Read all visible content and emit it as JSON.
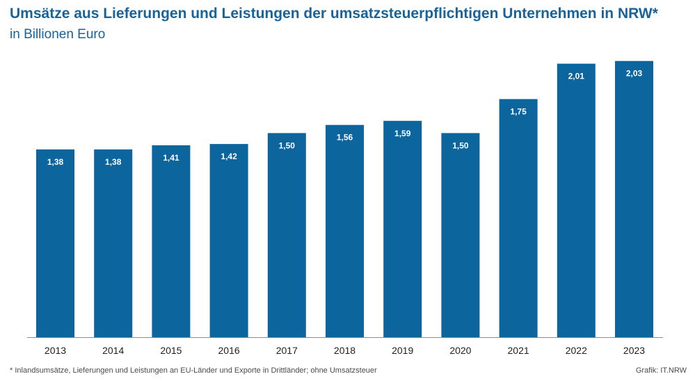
{
  "chart": {
    "title": "Umsätze aus Lieferungen und Leistungen der umsatzsteuerpflichtigen Unternehmen in NRW*",
    "subtitle": "in Billionen Euro",
    "footnote": "* Inlandsumsätze, Lieferungen und Leistungen an EU-Länder und Exporte in Drittländer; ohne Umsatzsteuer",
    "source": "Grafik: IT.NRW"
  },
  "colors": {
    "bar": "#0d659e",
    "title": "#17639a",
    "axis": "#8c8c8c",
    "bar_label": "#ffffff"
  },
  "chart_data": {
    "type": "bar",
    "title": "Umsätze aus Lieferungen und Leistungen der umsatzsteuerpflichtigen Unternehmen in NRW*",
    "subtitle": "in Billionen Euro",
    "xlabel": "",
    "ylabel": "",
    "ylim": [
      0,
      2.1
    ],
    "grid": false,
    "categories": [
      "2013",
      "2014",
      "2015",
      "2016",
      "2017",
      "2018",
      "2019",
      "2020",
      "2021",
      "2022",
      "2023"
    ],
    "values": [
      1.38,
      1.38,
      1.41,
      1.42,
      1.5,
      1.56,
      1.59,
      1.5,
      1.75,
      2.01,
      2.03
    ],
    "value_labels": [
      "1,38",
      "1,38",
      "1,41",
      "1,42",
      "1,50",
      "1,56",
      "1,59",
      "1,50",
      "1,75",
      "2,01",
      "2,03"
    ]
  }
}
